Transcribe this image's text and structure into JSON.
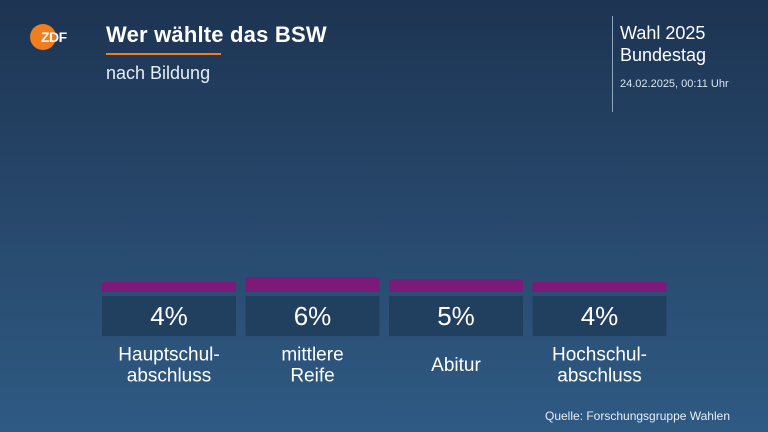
{
  "header": {
    "logo_text": "ZDF",
    "title": "Wer wählte das BSW",
    "subtitle": "nach Bildung",
    "election_line1": "Wahl 2025",
    "election_line2": "Bundestag",
    "timestamp": "24.02.2025, 00:11 Uhr"
  },
  "colors": {
    "bar": "#7b1a78",
    "value_box": "#21405f",
    "accent": "#f07d1e"
  },
  "chart_data": {
    "type": "bar",
    "title": "Wer wählte das BSW",
    "subtitle": "nach Bildung",
    "categories": [
      [
        "Hauptschul-",
        "abschluss"
      ],
      [
        "mittlere",
        "Reife"
      ],
      [
        "Abitur"
      ],
      [
        "Hochschul-",
        "abschluss"
      ]
    ],
    "values": [
      4,
      6,
      5,
      4
    ],
    "value_labels": [
      "4%",
      "6%",
      "5%",
      "4%"
    ],
    "unit": "%"
  },
  "footer": {
    "source": "Quelle: Forschungsgruppe Wahlen"
  }
}
